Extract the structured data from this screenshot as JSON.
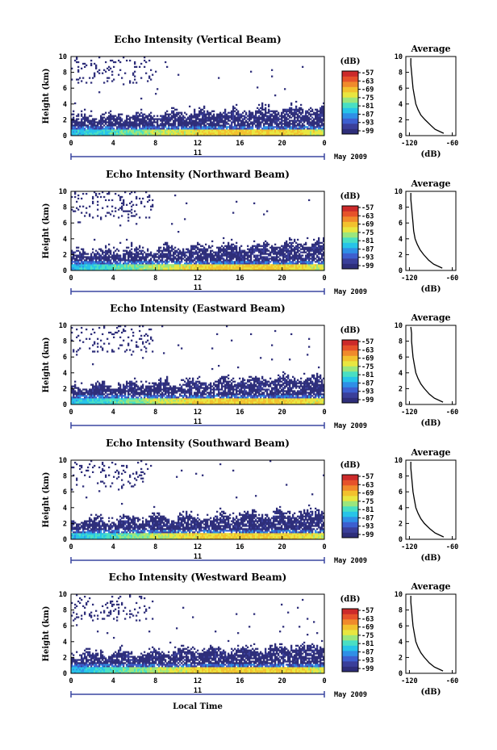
{
  "figure": {
    "xlabel": "Local Time",
    "date_label": "May 2009",
    "day_label": "11",
    "colorbar_unit": "(dB)",
    "colorbar_ticks": [
      "-57",
      "-63",
      "-69",
      "-75",
      "-81",
      "-87",
      "-93",
      "-99"
    ],
    "colorscale": [
      "#2e2e7a",
      "#3a3f9a",
      "#3d5fcf",
      "#2f8fe6",
      "#27c4e8",
      "#49dfc3",
      "#9be67d",
      "#e8e640",
      "#f2c12e",
      "#f08a2b",
      "#e6522a",
      "#cc2a2a"
    ],
    "avg_title": "Average",
    "avg_xlabel": "(dB)"
  },
  "chart_data": [
    {
      "type": "heatmap",
      "title": "Echo Intensity (Vertical Beam)",
      "ylabel": "Height (km)",
      "xlabel": "Local Time",
      "x_ticks": [
        "0",
        "4",
        "8",
        "12",
        "16",
        "20",
        "0"
      ],
      "y_ticks": [
        "0",
        "2",
        "4",
        "6",
        "8",
        "10"
      ],
      "xlim": [
        0,
        24
      ],
      "ylim": [
        0,
        10
      ],
      "colorbar": {
        "unit": "(dB)",
        "ticks": [
          -57,
          -63,
          -69,
          -75,
          -81,
          -87,
          -93,
          -99
        ]
      },
      "profile": {
        "heights": [
          0.3,
          0.8,
          1.3,
          2.0,
          2.6,
          3.3,
          4.0,
          5.0,
          6.0,
          7.0,
          8.0,
          9.0,
          9.8
        ],
        "values": [
          -72,
          -84,
          -90,
          -98,
          -104,
          -108,
          -111,
          -113,
          -115,
          -116,
          -117,
          -118,
          -118
        ]
      }
    },
    {
      "type": "heatmap",
      "title": "Echo Intensity (Northward Beam)",
      "ylabel": "Height (km)",
      "xlabel": "Local Time",
      "x_ticks": [
        "0",
        "4",
        "8",
        "12",
        "16",
        "20",
        "0"
      ],
      "y_ticks": [
        "0",
        "2",
        "4",
        "6",
        "8",
        "10"
      ],
      "xlim": [
        0,
        24
      ],
      "ylim": [
        0,
        10
      ],
      "colorbar": {
        "unit": "(dB)",
        "ticks": [
          -57,
          -63,
          -69,
          -75,
          -81,
          -87,
          -93,
          -99
        ]
      },
      "profile": {
        "heights": [
          0.3,
          0.8,
          1.3,
          2.0,
          2.6,
          3.3,
          4.0,
          5.0,
          6.0,
          7.0,
          8.0,
          9.0,
          9.8
        ],
        "values": [
          -74,
          -86,
          -93,
          -100,
          -105,
          -109,
          -112,
          -114,
          -115,
          -116,
          -117,
          -118,
          -118
        ]
      }
    },
    {
      "type": "heatmap",
      "title": "Echo Intensity (Eastward Beam)",
      "ylabel": "Height (km)",
      "xlabel": "Local Time",
      "x_ticks": [
        "0",
        "4",
        "8",
        "12",
        "16",
        "20",
        "0"
      ],
      "y_ticks": [
        "0",
        "2",
        "4",
        "6",
        "8",
        "10"
      ],
      "xlim": [
        0,
        24
      ],
      "ylim": [
        0,
        10
      ],
      "colorbar": {
        "unit": "(dB)",
        "ticks": [
          -57,
          -63,
          -69,
          -75,
          -81,
          -87,
          -93,
          -99
        ]
      },
      "profile": {
        "heights": [
          0.3,
          0.8,
          1.3,
          2.0,
          2.6,
          3.3,
          4.0,
          5.0,
          6.0,
          7.0,
          8.0,
          9.0,
          9.8
        ],
        "values": [
          -73,
          -85,
          -92,
          -99,
          -104,
          -108,
          -111,
          -113,
          -115,
          -116,
          -117,
          -117,
          -118
        ]
      }
    },
    {
      "type": "heatmap",
      "title": "Echo Intensity (Southward Beam)",
      "ylabel": "Height (km)",
      "xlabel": "Local Time",
      "x_ticks": [
        "0",
        "4",
        "8",
        "12",
        "16",
        "20",
        "0"
      ],
      "y_ticks": [
        "0",
        "2",
        "4",
        "6",
        "8",
        "10"
      ],
      "xlim": [
        0,
        24
      ],
      "ylim": [
        0,
        10
      ],
      "colorbar": {
        "unit": "(dB)",
        "ticks": [
          -57,
          -63,
          -69,
          -75,
          -81,
          -87,
          -93,
          -99
        ]
      },
      "profile": {
        "heights": [
          0.3,
          0.8,
          1.3,
          2.0,
          2.6,
          3.3,
          4.0,
          5.0,
          6.0,
          7.0,
          8.0,
          9.0,
          9.8
        ],
        "values": [
          -72,
          -84,
          -91,
          -99,
          -104,
          -108,
          -111,
          -113,
          -115,
          -116,
          -117,
          -118,
          -118
        ]
      }
    },
    {
      "type": "heatmap",
      "title": "Echo Intensity (Westward Beam)",
      "ylabel": "Height (km)",
      "xlabel": "Local Time",
      "x_ticks": [
        "0",
        "4",
        "8",
        "12",
        "16",
        "20",
        "0"
      ],
      "y_ticks": [
        "0",
        "2",
        "4",
        "6",
        "8",
        "10"
      ],
      "xlim": [
        0,
        24
      ],
      "ylim": [
        0,
        10
      ],
      "colorbar": {
        "unit": "(dB)",
        "ticks": [
          -57,
          -63,
          -69,
          -75,
          -81,
          -87,
          -93,
          -99
        ]
      },
      "profile": {
        "heights": [
          0.3,
          0.8,
          1.3,
          2.0,
          2.6,
          3.3,
          4.0,
          5.0,
          6.0,
          7.0,
          8.0,
          9.0,
          9.8
        ],
        "values": [
          -73,
          -85,
          -92,
          -99,
          -104,
          -108,
          -111,
          -113,
          -115,
          -116,
          -117,
          -118,
          -118
        ]
      }
    }
  ],
  "avg_axis": {
    "x_ticks_labels": [
      "-120",
      "-60"
    ],
    "x_tick_values": [
      -120,
      -60
    ],
    "xlim": [
      -125,
      -55
    ],
    "y_ticks": [
      "0",
      "2",
      "4",
      "6",
      "8",
      "10"
    ]
  }
}
